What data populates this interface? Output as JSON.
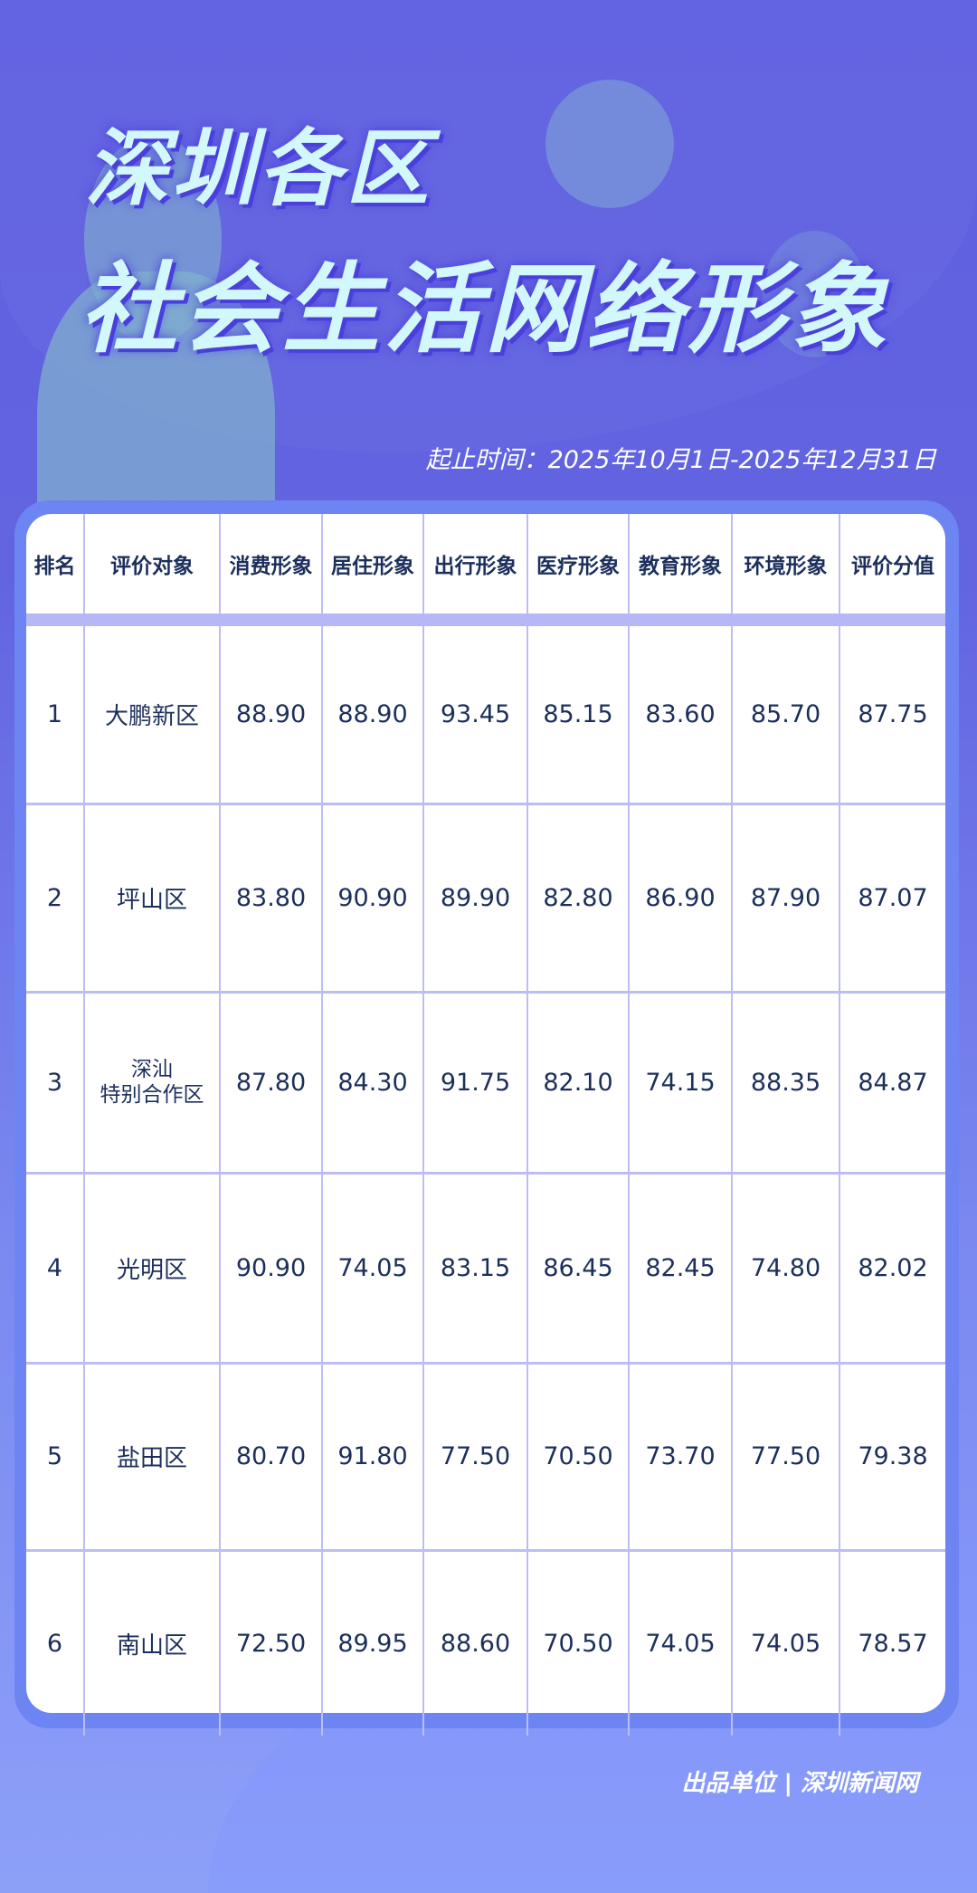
{
  "header": {
    "title_line1": "深圳各区",
    "title_line2": "社会生活网络形象",
    "date_range": "起止时间：2025年10月1日-2025年12月31日"
  },
  "table": {
    "columns": [
      "排名",
      "评价对象",
      "消费形象",
      "居住形象",
      "出行形象",
      "医疗形象",
      "教育形象",
      "环境形象",
      "评价分值"
    ],
    "rows": [
      [
        "1",
        "大鹏新区",
        "88.90",
        "88.90",
        "93.45",
        "85.15",
        "83.60",
        "85.70",
        "87.75"
      ],
      [
        "2",
        "坪山区",
        "83.80",
        "90.90",
        "89.90",
        "82.80",
        "86.90",
        "87.90",
        "87.07"
      ],
      [
        "3",
        "深汕\n特别合作区",
        "87.80",
        "84.30",
        "91.75",
        "82.10",
        "74.15",
        "88.35",
        "84.87"
      ],
      [
        "4",
        "光明区",
        "90.90",
        "74.05",
        "83.15",
        "86.45",
        "82.45",
        "74.80",
        "82.02"
      ],
      [
        "5",
        "盐田区",
        "80.70",
        "91.80",
        "77.50",
        "70.50",
        "73.70",
        "77.50",
        "79.38"
      ],
      [
        "6",
        "南山区",
        "72.50",
        "89.95",
        "88.60",
        "70.50",
        "74.05",
        "74.05",
        "78.57"
      ]
    ]
  },
  "footer": {
    "credit": "出品单位 | 深圳新闻网"
  },
  "colors": {
    "background": "#6264e0",
    "title_text": "#d2f8fb",
    "table_text": "#1c2f5c",
    "grid": "#bdbdf6",
    "card_border": "#6d84f3"
  }
}
